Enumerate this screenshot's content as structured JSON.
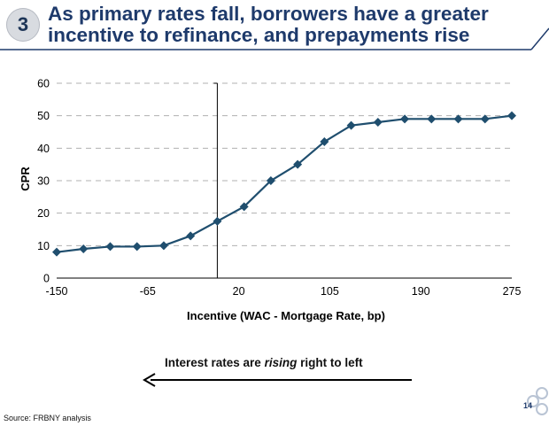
{
  "slide": {
    "number": "3",
    "title_line1": "As primary rates fall, borrowers have a greater",
    "title_line2": "incentive to refinance, and prepayments rise",
    "arrow_text_before": "Interest rates are ",
    "arrow_text_italic": "rising",
    "arrow_text_after": " right to left",
    "source": "Source: FRBNY analysis",
    "page": "14"
  },
  "colors": {
    "title": "#1e3a6b",
    "series": "#1f4e6e",
    "rule": "#1e3a6b"
  },
  "chart_data": {
    "type": "line",
    "title": "",
    "xlabel": "Incentive (WAC - Mortgage Rate, bp)",
    "ylabel": "CPR",
    "x": [
      -150,
      -125,
      -100,
      -75,
      -50,
      -25,
      0,
      25,
      50,
      75,
      100,
      125,
      150,
      175,
      200,
      225,
      250,
      275
    ],
    "x_tick_labels": [
      "-150",
      "-65",
      "20",
      "105",
      "190",
      "275"
    ],
    "x_tick_positions": [
      -150,
      -65,
      20,
      105,
      190,
      275
    ],
    "series": [
      {
        "values": [
          8,
          9,
          9.7,
          9.7,
          10,
          13,
          17.5,
          22,
          30,
          35,
          42,
          47,
          48,
          49,
          49,
          49,
          49,
          50
        ]
      }
    ],
    "xlim": [
      -150,
      275
    ],
    "ylim": [
      0,
      60
    ],
    "y_ticks": [
      0,
      10,
      20,
      30,
      40,
      50,
      60
    ],
    "grid": true,
    "legend": "none",
    "vertical_reference_x": 0
  }
}
